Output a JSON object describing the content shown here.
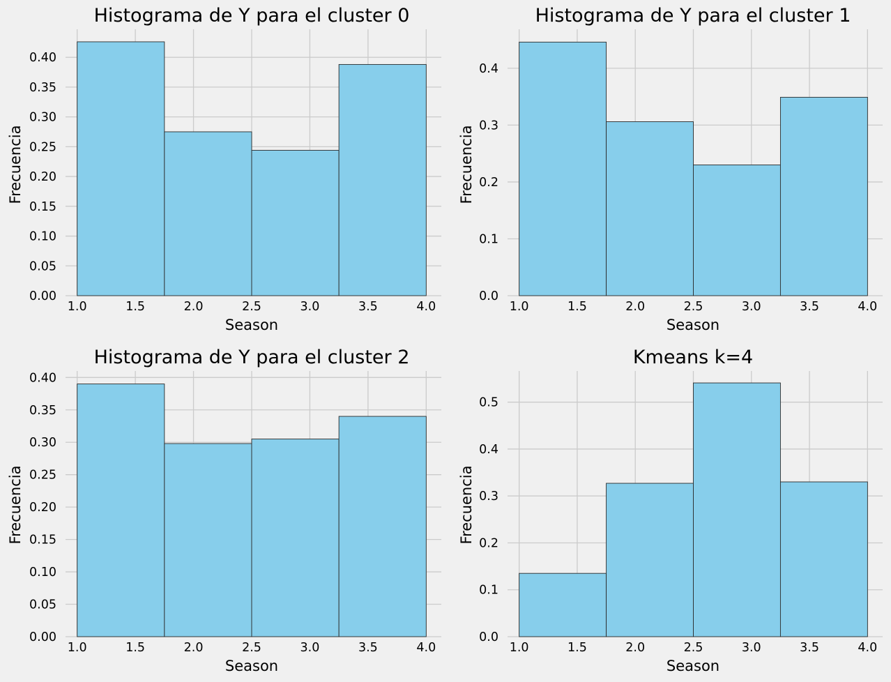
{
  "chart_data": [
    {
      "type": "bar",
      "title": "Histograma de Y para el cluster 0",
      "xlabel": "Season",
      "ylabel": "Frecuencia",
      "bin_edges": [
        1.0,
        1.75,
        2.5,
        3.25,
        4.0
      ],
      "values": [
        0.426,
        0.275,
        0.244,
        0.388
      ],
      "xlim": [
        0.9,
        4.13
      ],
      "ylim": [
        0,
        0.447
      ],
      "xticks": [
        1.0,
        1.5,
        2.0,
        2.5,
        3.0,
        3.5,
        4.0
      ],
      "xtick_labels": [
        "1.0",
        "1.5",
        "2.0",
        "2.5",
        "3.0",
        "3.5",
        "4.0"
      ],
      "yticks": [
        0,
        0.05,
        0.1,
        0.15,
        0.2,
        0.25,
        0.3,
        0.35,
        0.4
      ],
      "ytick_labels": [
        "0.00",
        "0.05",
        "0.10",
        "0.15",
        "0.20",
        "0.25",
        "0.30",
        "0.35",
        "0.40"
      ],
      "grid": true,
      "bar_color": "#87ceeb",
      "edge_color": "#2b2b2b"
    },
    {
      "type": "bar",
      "title": "Histograma de Y para el cluster 1",
      "xlabel": "Season",
      "ylabel": "Frecuencia",
      "bin_edges": [
        1.0,
        1.75,
        2.5,
        3.25,
        4.0
      ],
      "values": [
        0.446,
        0.306,
        0.23,
        0.349
      ],
      "xlim": [
        0.9,
        4.13
      ],
      "ylim": [
        0,
        0.4685
      ],
      "xticks": [
        1.0,
        1.5,
        2.0,
        2.5,
        3.0,
        3.5,
        4.0
      ],
      "xtick_labels": [
        "1.0",
        "1.5",
        "2.0",
        "2.5",
        "3.0",
        "3.5",
        "4.0"
      ],
      "yticks": [
        0,
        0.1,
        0.2,
        0.3,
        0.4
      ],
      "ytick_labels": [
        "0.0",
        "0.1",
        "0.2",
        "0.3",
        "0.4"
      ],
      "grid": true,
      "bar_color": "#87ceeb",
      "edge_color": "#2b2b2b"
    },
    {
      "type": "bar",
      "title": "Histograma de Y para el cluster 2",
      "xlabel": "Season",
      "ylabel": "Frecuencia",
      "bin_edges": [
        1.0,
        1.75,
        2.5,
        3.25,
        4.0
      ],
      "values": [
        0.39,
        0.298,
        0.305,
        0.34
      ],
      "xlim": [
        0.9,
        4.13
      ],
      "ylim": [
        0,
        0.41
      ],
      "xticks": [
        1.0,
        1.5,
        2.0,
        2.5,
        3.0,
        3.5,
        4.0
      ],
      "xtick_labels": [
        "1.0",
        "1.5",
        "2.0",
        "2.5",
        "3.0",
        "3.5",
        "4.0"
      ],
      "yticks": [
        0,
        0.05,
        0.1,
        0.15,
        0.2,
        0.25,
        0.3,
        0.35,
        0.4
      ],
      "ytick_labels": [
        "0.00",
        "0.05",
        "0.10",
        "0.15",
        "0.20",
        "0.25",
        "0.30",
        "0.35",
        "0.40"
      ],
      "grid": true,
      "bar_color": "#87ceeb",
      "edge_color": "#2b2b2b"
    },
    {
      "type": "bar",
      "title": "Kmeans k=4",
      "xlabel": "Season",
      "ylabel": "Frecuencia",
      "bin_edges": [
        1.0,
        1.75,
        2.5,
        3.25,
        4.0
      ],
      "values": [
        0.135,
        0.327,
        0.541,
        0.33
      ],
      "xlim": [
        0.9,
        4.13
      ],
      "ylim": [
        0,
        0.5664
      ],
      "xticks": [
        1.0,
        1.5,
        2.0,
        2.5,
        3.0,
        3.5,
        4.0
      ],
      "xtick_labels": [
        "1.0",
        "1.5",
        "2.0",
        "2.5",
        "3.0",
        "3.5",
        "4.0"
      ],
      "yticks": [
        0,
        0.1,
        0.2,
        0.3,
        0.4,
        0.5
      ],
      "ytick_labels": [
        "0.0",
        "0.1",
        "0.2",
        "0.3",
        "0.4",
        "0.5"
      ],
      "grid": true,
      "bar_color": "#87ceeb",
      "edge_color": "#2b2b2b"
    }
  ]
}
